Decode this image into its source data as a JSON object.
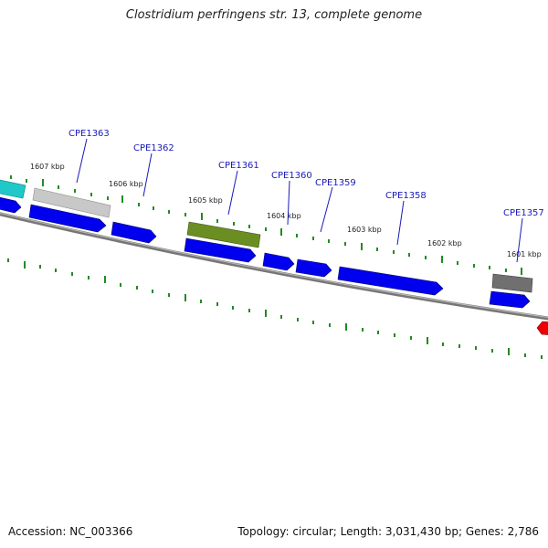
{
  "title": "Clostridium perfringens str. 13, complete genome",
  "accession": "Accession: NC_003366",
  "topology": "Topology: circular; Length: 3,031,430 bp; Genes: 2,786",
  "ticks": [
    "1607 kbp",
    "1606 kbp",
    "1605 kbp",
    "1604 kbp",
    "1603 kbp",
    "1602 kbp",
    "1601 kbp"
  ],
  "genes": [
    "CPE1363",
    "CPE1362",
    "CPE1361",
    "CPE1360",
    "CPE1359",
    "CPE1358",
    "CPE1357"
  ],
  "colors": {
    "backbone": "#808080",
    "cds_blue": "#0000ee",
    "tick_green": "#228b22",
    "label_blue": "#1a1ab8",
    "feature_cyan": "#20c8c8",
    "feature_silver": "#c8c8c8",
    "feature_olive": "#6b8e23",
    "feature_darkgray": "#707070",
    "feature_red": "#ee0000"
  }
}
